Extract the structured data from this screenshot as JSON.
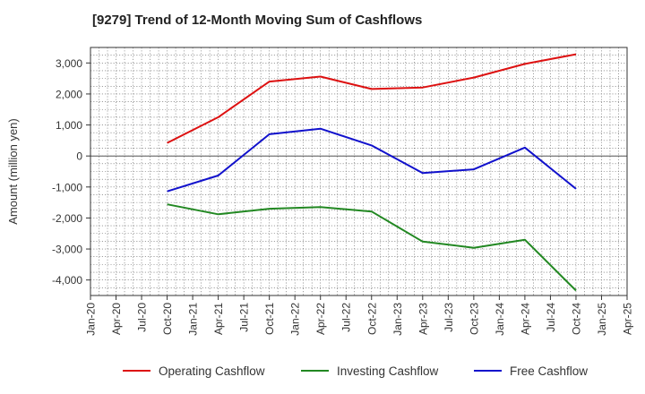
{
  "chart_data": {
    "type": "line",
    "title": "[9279]  Trend of 12-Month Moving Sum of Cashflows",
    "ylabel": "Amount (million yen)",
    "xlabel": "",
    "x_ticks": [
      "Jan-20",
      "Apr-20",
      "Jul-20",
      "Oct-20",
      "Jan-21",
      "Apr-21",
      "Jul-21",
      "Oct-21",
      "Jan-22",
      "Apr-22",
      "Jul-22",
      "Oct-22",
      "Jan-23",
      "Apr-23",
      "Jul-23",
      "Oct-23",
      "Jan-24",
      "Apr-24",
      "Jul-24",
      "Oct-24",
      "Jan-25",
      "Apr-25"
    ],
    "y_ticks": [
      3000,
      2000,
      1000,
      0,
      -1000,
      -2000,
      -3000,
      -4000
    ],
    "y_tick_labels": [
      "3,000",
      "2,000",
      "1,000",
      "0",
      "-1,000",
      "-2,000",
      "-3,000",
      "-4,000"
    ],
    "xlim": [
      "Jan-20",
      "Apr-25"
    ],
    "ylim": [
      -4500,
      3500
    ],
    "grid": true,
    "legend_position": "bottom",
    "x": [
      "Oct-20",
      "Apr-21",
      "Oct-21",
      "Apr-22",
      "Oct-22",
      "Apr-23",
      "Oct-23",
      "Apr-24",
      "Oct-24"
    ],
    "series": [
      {
        "name": "Operating Cashflow",
        "color": "#dd1111",
        "values": [
          420,
          1250,
          2400,
          2560,
          2160,
          2210,
          2530,
          2970,
          3280
        ]
      },
      {
        "name": "Investing Cashflow",
        "color": "#228822",
        "values": [
          -1560,
          -1880,
          -1700,
          -1650,
          -1790,
          -2760,
          -2960,
          -2700,
          -4340
        ]
      },
      {
        "name": "Free Cashflow",
        "color": "#1111cc",
        "values": [
          -1140,
          -630,
          700,
          880,
          340,
          -550,
          -430,
          270,
          -1060
        ]
      }
    ]
  }
}
